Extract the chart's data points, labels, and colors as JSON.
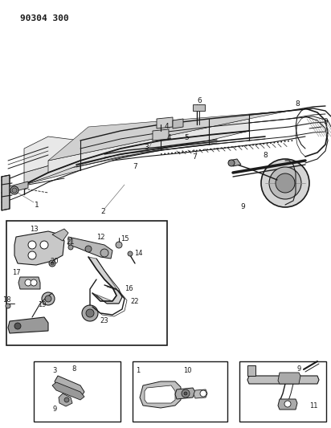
{
  "title": "90304 300",
  "bg": "#ffffff",
  "lc": "#1a1a1a",
  "fig_w": 4.12,
  "fig_h": 5.33,
  "dpi": 100
}
